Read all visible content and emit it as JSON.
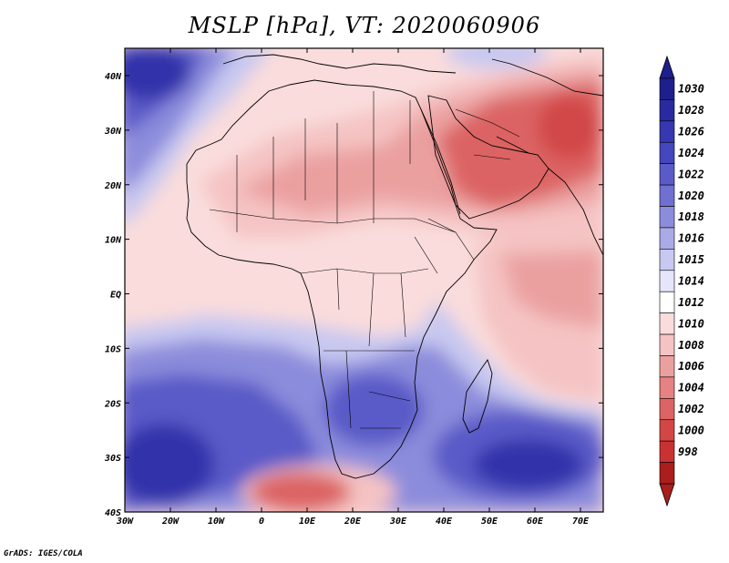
{
  "title": "MSLP [hPa], VT: 2020060906",
  "credit": "GrADS: IGES/COLA",
  "lon_ticks": [
    "30W",
    "20W",
    "10W",
    "0",
    "10E",
    "20E",
    "30E",
    "40E",
    "50E",
    "60E",
    "70E"
  ],
  "lat_ticks": [
    "40N",
    "30N",
    "20N",
    "10N",
    "EQ",
    "10S",
    "20S",
    "30S",
    "40S"
  ],
  "colorbar": {
    "labels": [
      "1030",
      "1028",
      "1026",
      "1024",
      "1022",
      "1020",
      "1018",
      "1016",
      "1015",
      "1014",
      "1012",
      "1010",
      "1008",
      "1006",
      "1004",
      "1002",
      "1000",
      "998"
    ],
    "colors": [
      "#1e1e8c",
      "#2a2aa0",
      "#3737b0",
      "#4646be",
      "#5a5ac8",
      "#7070d2",
      "#8c8cdc",
      "#aaaae6",
      "#c8c8f0",
      "#e6e6fa",
      "#ffffff",
      "#fadcdc",
      "#f5c3c3",
      "#eba0a0",
      "#e68282",
      "#dc6464",
      "#d24646",
      "#c83232",
      "#aa1e1e"
    ],
    "top_color": "#1e1e8c",
    "bottom_color": "#aa1e1e"
  },
  "field_colors": {
    "deep_blue": "#3232aa",
    "blue": "#5a5ac8",
    "mid_blue": "#8c8cdc",
    "light_blue": "#c8c8f0",
    "white": "#ffffff",
    "pale_red": "#fadcdc",
    "light_red": "#f5c3c3",
    "red": "#eba0a0",
    "deep_red": "#dc6464",
    "darkest_red": "#d24646"
  }
}
